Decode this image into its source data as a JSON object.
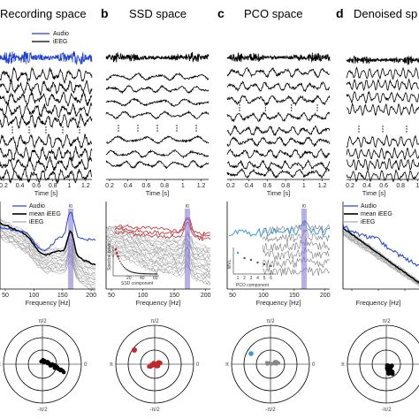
{
  "panels": [
    {
      "letter": "",
      "title": "Recording space"
    },
    {
      "letter": "b",
      "title": "SSD space"
    },
    {
      "letter": "c",
      "title": "PCO space"
    },
    {
      "letter": "d",
      "title": "Denoised sp"
    }
  ],
  "time_axis": {
    "label": "Time [s]",
    "ticks": [
      "0.2",
      "0.4",
      "0.6",
      "0.8",
      "1",
      "1.2"
    ]
  },
  "spectrum_axis": {
    "label": "Frequency [Hz]",
    "ticks": [
      "50",
      "100",
      "150",
      "200"
    ],
    "peak_label": "f0"
  },
  "legends": {
    "recording": [
      "Audio",
      "iEEG"
    ],
    "spectrum_a": [
      "Audio",
      "mean iEEG",
      "iEEG"
    ],
    "spectrum_d": [
      "Audio",
      "mean iEEG",
      "iEEG"
    ]
  },
  "insets": {
    "ssd": {
      "ylabel": "Spectral power",
      "xlabel": "SSD component",
      "ticks": [
        "20",
        "40",
        "60"
      ]
    },
    "pco": {
      "ylabel": "MVL",
      "xlabel": "PCO component",
      "ticks": [
        "1",
        "2",
        "3",
        "4",
        "5",
        "6"
      ]
    }
  },
  "polar_labels": {
    "top": "π/2",
    "bottom": "-π/2",
    "left": "π",
    "right": "0"
  },
  "colors": {
    "audio": "#1f3fd6",
    "audio_light": "#3a9ad9",
    "ieeg": "#000000",
    "ieeg_light": "#9a9a9a",
    "ssd_red": "#c0282c",
    "band": "#7b6fd6"
  }
}
